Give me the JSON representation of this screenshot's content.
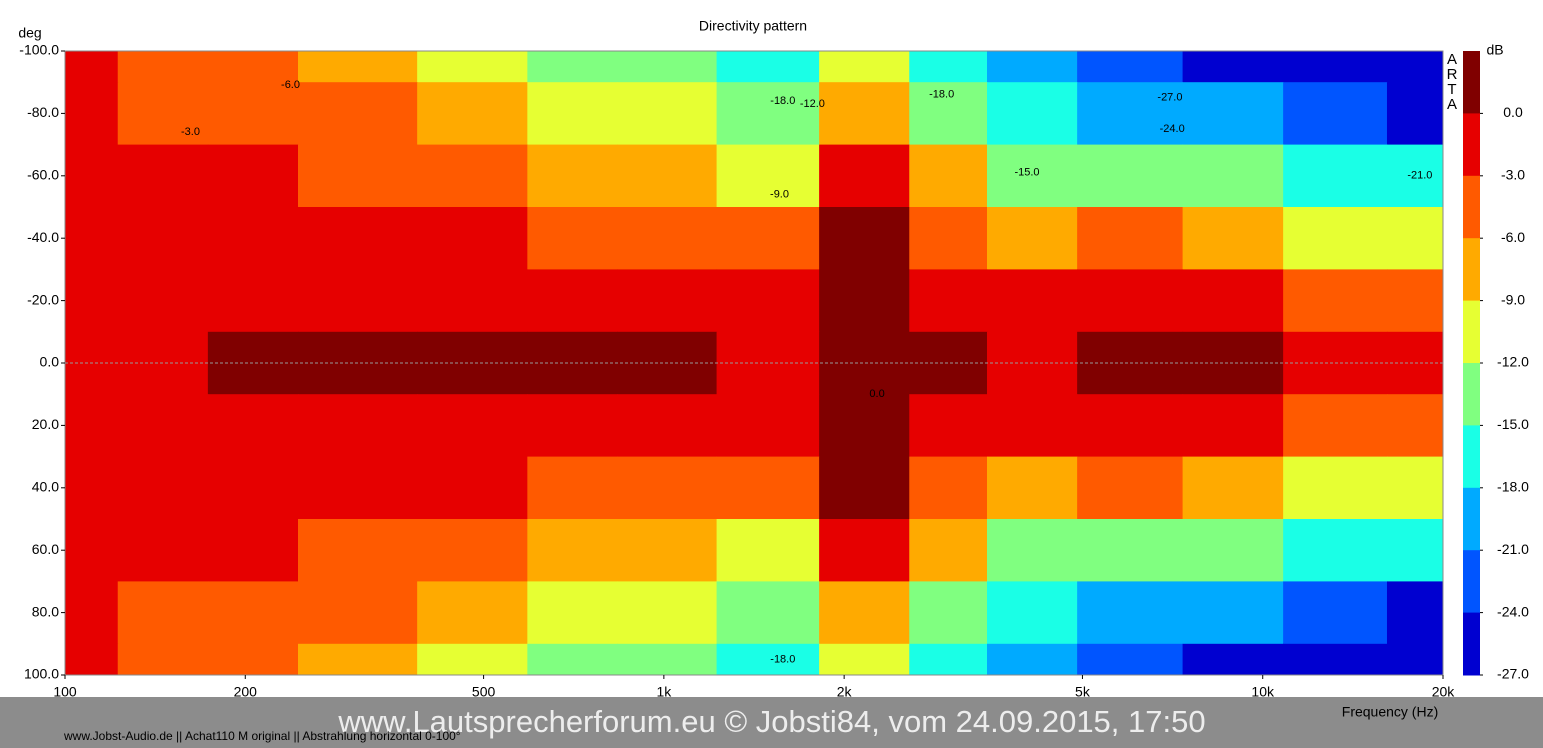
{
  "chart_data": {
    "type": "contour",
    "title": "Directivity pattern",
    "y_label": "deg",
    "x_label": "Frequency (Hz)",
    "z_label": "dB",
    "brand": "ARTA",
    "footer": "www.Jobst-Audio.de  ||  Achat110 M original  ||  Abstrahlung horizontal 0-100°",
    "watermark": "www.Lautsprecherforum.eu © Jobsti84, vom 24.09.2015, 17:50",
    "log_x": true,
    "xlim": [
      100,
      20000
    ],
    "xticks": [
      100,
      200,
      500,
      {
        "value": 1000,
        "label": "1k"
      },
      {
        "value": 2000,
        "label": "2k"
      },
      {
        "value": 5000,
        "label": "5k"
      },
      {
        "value": 10000,
        "label": "10k"
      },
      {
        "value": 20000,
        "label": "20k"
      }
    ],
    "ylim": [
      -100,
      100
    ],
    "yticks": [
      {
        "value": -100,
        "label": "-100.0"
      },
      {
        "value": -80,
        "label": "-80.0"
      },
      {
        "value": -60,
        "label": "-60.0"
      },
      {
        "value": -40,
        "label": "-40.0"
      },
      {
        "value": -20,
        "label": "-20.0"
      },
      {
        "value": 0,
        "label": "0.0"
      },
      {
        "value": 20,
        "label": "20.0"
      },
      {
        "value": 40,
        "label": "40.0"
      },
      {
        "value": 60,
        "label": "60.0"
      },
      {
        "value": 80,
        "label": "80.0"
      },
      {
        "value": 100,
        "label": "100.0"
      }
    ],
    "zlim": [
      -27,
      3
    ],
    "zticks": [
      {
        "value": 0,
        "label": "0.0"
      },
      {
        "value": -3,
        "label": "-3.0"
      },
      {
        "value": -6,
        "label": "-6.0"
      },
      {
        "value": -9,
        "label": "-9.0"
      },
      {
        "value": -12,
        "label": "-12.0"
      },
      {
        "value": -15,
        "label": "-15.0"
      },
      {
        "value": -18,
        "label": "-18.0"
      },
      {
        "value": -21,
        "label": "-21.0"
      },
      {
        "value": -24,
        "label": "-24.0"
      },
      {
        "value": -27,
        "label": "-27.0"
      }
    ],
    "colors": [
      "#800000",
      "#e60000",
      "#ff5a00",
      "#ffaa00",
      "#e6ff33",
      "#80ff80",
      "#1affe6",
      "#00aaff",
      "#0055ff",
      "#0000d0"
    ],
    "x": [
      100,
      150,
      200,
      300,
      500,
      700,
      1000,
      1500,
      2200,
      3000,
      4000,
      6000,
      9000,
      13000,
      20000
    ],
    "y": [
      -100,
      -80,
      -60,
      -40,
      -20,
      0,
      20,
      40,
      60,
      80,
      100
    ],
    "z": [
      [
        -2.8,
        -4,
        -5.5,
        -7,
        -10,
        -12,
        -14,
        -17,
        -9,
        -15,
        -19,
        -22,
        -24,
        -27,
        -27
      ],
      [
        -2.5,
        -3.5,
        -4,
        -5,
        -7,
        -9,
        -10,
        -13,
        -6,
        -12,
        -16,
        -18,
        -20,
        -22,
        -24
      ],
      [
        -2,
        -2,
        -2.5,
        -3.5,
        -4.5,
        -6,
        -7,
        -9,
        -2,
        -8,
        -12,
        -12,
        -14,
        -16,
        -17
      ],
      [
        -2,
        -2,
        -1.5,
        -2,
        -2.5,
        -3,
        -3.5,
        -4,
        0.5,
        -4,
        -6,
        -5,
        -7,
        -9,
        -10
      ],
      [
        -1.5,
        -1.5,
        0,
        -1,
        -1,
        -1.5,
        -1.5,
        -1.5,
        1,
        -2,
        -2,
        -1,
        -1.5,
        -4,
        -4
      ],
      [
        -1,
        -1,
        0.5,
        0.3,
        0.5,
        0.2,
        0.2,
        -1,
        1,
        0.5,
        -1,
        1,
        1,
        -1,
        -2
      ],
      [
        -1.5,
        -1.5,
        0,
        -1,
        -1,
        -1.5,
        -1.5,
        -1.5,
        1,
        -2,
        -2,
        -1,
        -1.5,
        -4,
        -4
      ],
      [
        -2,
        -2,
        -1.5,
        -2,
        -2.5,
        -3,
        -3.5,
        -4,
        0.5,
        -4,
        -6,
        -5,
        -7,
        -9,
        -10
      ],
      [
        -2,
        -2,
        -2.5,
        -3.5,
        -4.5,
        -6,
        -7,
        -9,
        -2,
        -8,
        -12,
        -12,
        -14,
        -16,
        -17
      ],
      [
        -2.5,
        -3.5,
        -4,
        -5,
        -7,
        -9,
        -10,
        -13,
        -6,
        -12,
        -16,
        -18,
        -20,
        -22,
        -24
      ],
      [
        -2.8,
        -4,
        -5.5,
        -7,
        -10,
        -12,
        -14,
        -17,
        -9,
        -15,
        -19,
        -22,
        -24,
        -27,
        -27
      ]
    ],
    "annotations": [
      {
        "text": "-3.0",
        "x": 162,
        "y": -74
      },
      {
        "text": "-6.0",
        "x": 238,
        "y": -89
      },
      {
        "text": "-18.0",
        "x": 1580,
        "y": -84
      },
      {
        "text": "-12.0",
        "x": 1770,
        "y": -83
      },
      {
        "text": "-9.0",
        "x": 1560,
        "y": -54
      },
      {
        "text": "-18.0",
        "x": 2910,
        "y": -86
      },
      {
        "text": "-15.0",
        "x": 4040,
        "y": -61
      },
      {
        "text": "-27.0",
        "x": 7000,
        "y": -85
      },
      {
        "text": "-24.0",
        "x": 7060,
        "y": -75
      },
      {
        "text": "-21.0",
        "x": 18300,
        "y": -60
      },
      {
        "text": "0.0",
        "x": 2270,
        "y": 10
      },
      {
        "text": "-18.0",
        "x": 1580,
        "y": 95
      }
    ]
  }
}
